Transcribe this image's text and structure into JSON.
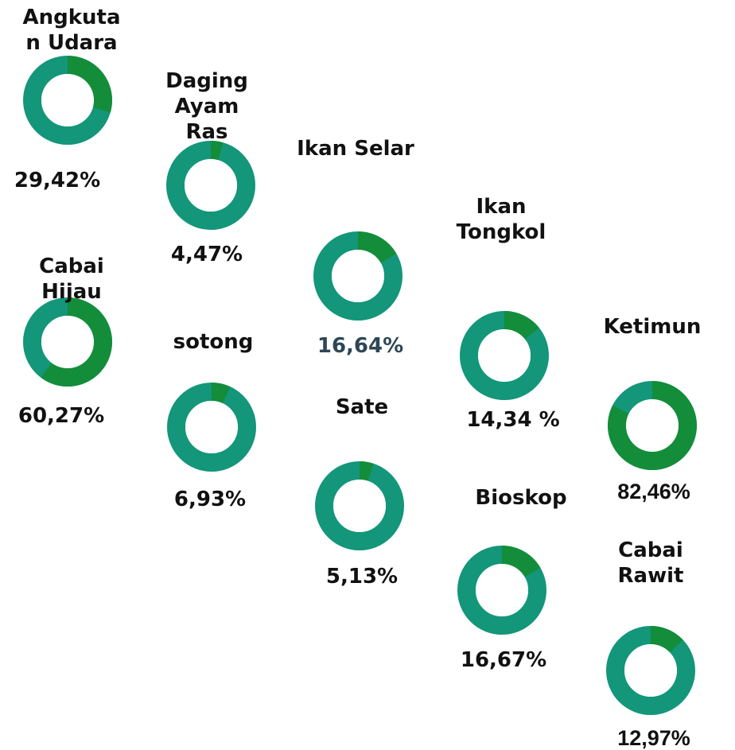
{
  "chart_data": [
    {
      "type": "pie",
      "title": "Angkutan Udara",
      "values": [
        29.42
      ],
      "value_labels": [
        "29,42%"
      ],
      "color": "#138d3a",
      "rest_color": "#13967a",
      "label_color": "#111111"
    },
    {
      "type": "pie",
      "title": "Daging Ayam Ras",
      "values": [
        4.47
      ],
      "value_labels": [
        "4,47%"
      ],
      "color": "#138d3a",
      "rest_color": "#13967a",
      "label_color": "#111111"
    },
    {
      "type": "pie",
      "title": "Ikan Selar",
      "values": [
        16.64
      ],
      "value_labels": [
        "16,64%"
      ],
      "color": "#138d3a",
      "rest_color": "#13967a",
      "label_color": "#2e4657"
    },
    {
      "type": "pie",
      "title": "Ikan Tongkol",
      "values": [
        14.34
      ],
      "value_labels": [
        "14,34 %"
      ],
      "color": "#138d3a",
      "rest_color": "#13967a",
      "label_color": "#111111"
    },
    {
      "type": "pie",
      "title": "Ketimun",
      "values": [
        82.46
      ],
      "value_labels": [
        "82,46%"
      ],
      "color": "#138d3a",
      "rest_color": "#13967a",
      "label_color": "#111111"
    },
    {
      "type": "pie",
      "title": "Cabai Hijau",
      "values": [
        60.27
      ],
      "value_labels": [
        "60,27%"
      ],
      "color": "#138d3a",
      "rest_color": "#13967a",
      "label_color": "#111111"
    },
    {
      "type": "pie",
      "title": "sotong",
      "values": [
        6.93
      ],
      "value_labels": [
        "6,93%"
      ],
      "color": "#138d3a",
      "rest_color": "#13967a",
      "label_color": "#111111"
    },
    {
      "type": "pie",
      "title": "Sate",
      "values": [
        5.13
      ],
      "value_labels": [
        "5,13%"
      ],
      "color": "#138d3a",
      "rest_color": "#13967a",
      "label_color": "#111111"
    },
    {
      "type": "pie",
      "title": "Bioskop",
      "values": [
        16.67
      ],
      "value_labels": [
        "16,67%"
      ],
      "color": "#138d3a",
      "rest_color": "#13967a",
      "label_color": "#111111"
    },
    {
      "type": "pie",
      "title": "Cabai Rawit",
      "values": [
        12.97
      ],
      "value_labels": [
        "12,97%"
      ],
      "color": "#138d3a",
      "rest_color": "#13967a",
      "label_color": "#111111"
    }
  ]
}
